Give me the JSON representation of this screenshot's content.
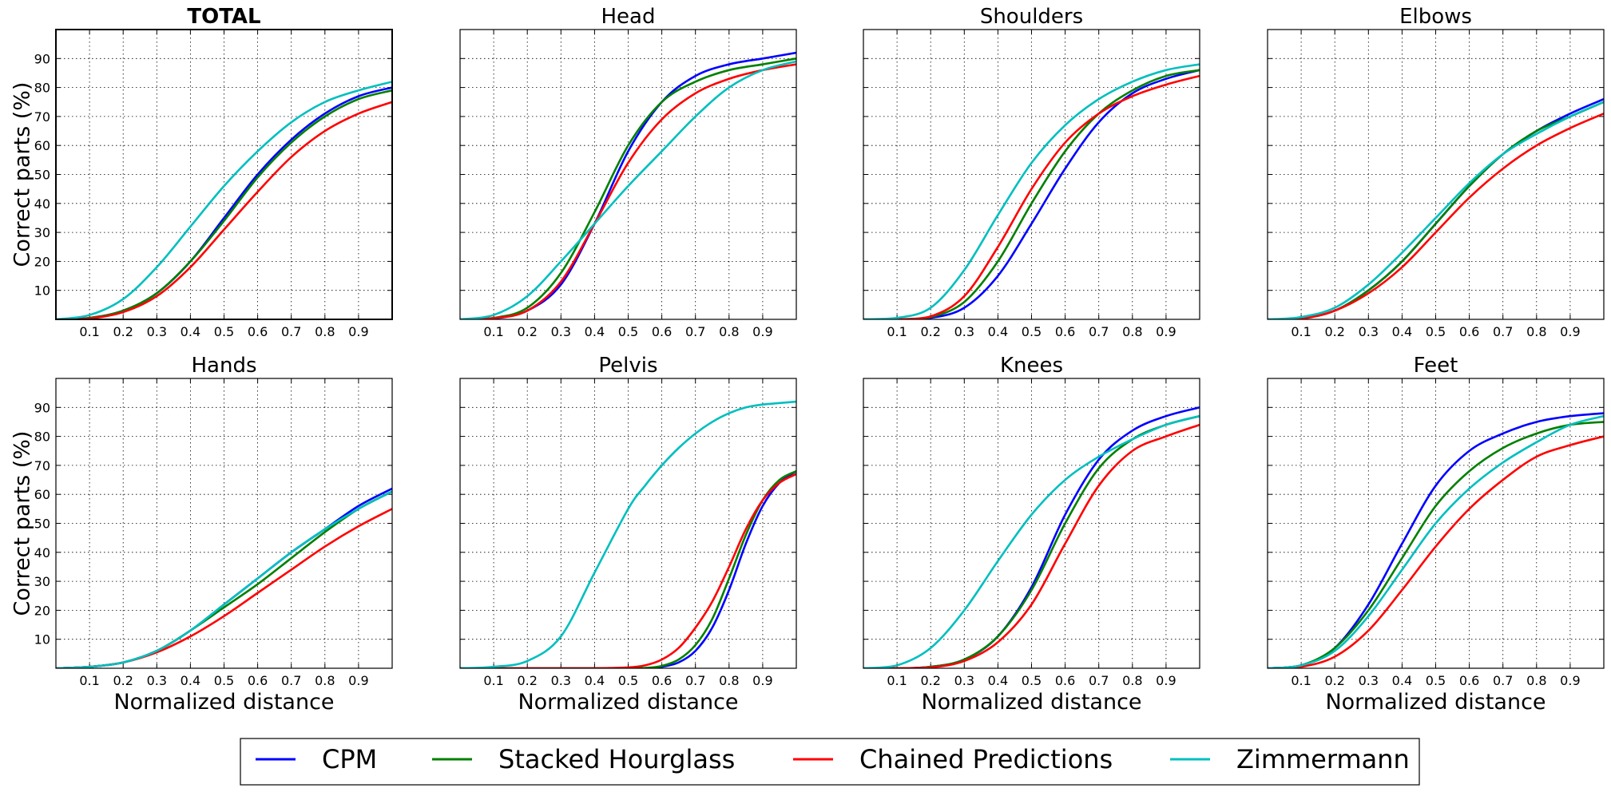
{
  "legend": {
    "placement": "bottom-center",
    "entries": [
      {
        "name": "CPM",
        "color": "#0000ff"
      },
      {
        "name": "Stacked Hourglass",
        "color": "#008000"
      },
      {
        "name": "Chained Predictions",
        "color": "#ff0000"
      },
      {
        "name": "Zimmermann",
        "color": "#00bfbf"
      }
    ]
  },
  "chart_data": [
    {
      "type": "line",
      "title": "TOTAL",
      "title_bold": true,
      "xlabel": "",
      "ylabel": "Correct parts (%)",
      "xlim": [
        0,
        1
      ],
      "ylim": [
        0,
        100
      ],
      "xticks": [
        0.1,
        0.2,
        0.3,
        0.4,
        0.5,
        0.6,
        0.7,
        0.8,
        0.9
      ],
      "xtick_labels": [
        "0.1",
        "0.2",
        "0.3",
        "0.4",
        "0.5",
        "0.6",
        "0.7",
        "0.8",
        "0.9"
      ],
      "yticks": [
        10,
        20,
        30,
        40,
        50,
        60,
        70,
        80,
        90
      ],
      "ytick_labels": [
        "10",
        "20",
        "30",
        "40",
        "50",
        "60",
        "70",
        "80",
        "90"
      ],
      "grid": true,
      "x": [
        0,
        0.1,
        0.2,
        0.3,
        0.4,
        0.5,
        0.6,
        0.7,
        0.8,
        0.9,
        1.0
      ],
      "series": [
        {
          "name": "CPM",
          "values": [
            0,
            0.5,
            3,
            9,
            20,
            35,
            50,
            62,
            71,
            77,
            80
          ]
        },
        {
          "name": "Stacked Hourglass",
          "values": [
            0,
            0.5,
            3,
            9,
            20,
            34,
            49,
            61,
            70,
            76,
            79
          ]
        },
        {
          "name": "Chained Predictions",
          "values": [
            0,
            0.3,
            2.5,
            8,
            18,
            31,
            44,
            56,
            65,
            71,
            75
          ]
        },
        {
          "name": "Zimmermann",
          "values": [
            0,
            1.5,
            7,
            18,
            32,
            46,
            58,
            68,
            75,
            79,
            82
          ]
        }
      ]
    },
    {
      "type": "line",
      "title": "Head",
      "xlabel": "",
      "ylabel": "",
      "xlim": [
        0,
        1
      ],
      "ylim": [
        0,
        100
      ],
      "xticks": [
        0.1,
        0.2,
        0.3,
        0.4,
        0.5,
        0.6,
        0.7,
        0.8,
        0.9
      ],
      "xtick_labels": [
        "0.1",
        "0.2",
        "0.3",
        "0.4",
        "0.5",
        "0.6",
        "0.7",
        "0.8",
        "0.9"
      ],
      "yticks": [
        10,
        20,
        30,
        40,
        50,
        60,
        70,
        80,
        90
      ],
      "ytick_labels": [],
      "grid": true,
      "x": [
        0,
        0.1,
        0.2,
        0.3,
        0.4,
        0.5,
        0.6,
        0.7,
        0.8,
        0.9,
        1.0
      ],
      "series": [
        {
          "name": "CPM",
          "values": [
            0,
            0.3,
            3,
            12,
            33,
            58,
            75,
            84,
            88,
            90,
            92
          ]
        },
        {
          "name": "Stacked Hourglass",
          "values": [
            0,
            0.5,
            4,
            16,
            37,
            60,
            75,
            82,
            86,
            88,
            90
          ]
        },
        {
          "name": "Chained Predictions",
          "values": [
            0,
            0.4,
            3,
            13,
            33,
            54,
            69,
            78,
            83,
            86,
            88
          ]
        },
        {
          "name": "Zimmermann",
          "values": [
            0,
            1.5,
            8,
            20,
            33,
            46,
            58,
            70,
            80,
            86,
            89
          ]
        }
      ]
    },
    {
      "type": "line",
      "title": "Shoulders",
      "xlabel": "",
      "ylabel": "",
      "xlim": [
        0,
        1
      ],
      "ylim": [
        0,
        100
      ],
      "xticks": [
        0.1,
        0.2,
        0.3,
        0.4,
        0.5,
        0.6,
        0.7,
        0.8,
        0.9
      ],
      "xtick_labels": [
        "0.1",
        "0.2",
        "0.3",
        "0.4",
        "0.5",
        "0.6",
        "0.7",
        "0.8",
        "0.9"
      ],
      "yticks": [
        10,
        20,
        30,
        40,
        50,
        60,
        70,
        80,
        90
      ],
      "ytick_labels": [],
      "grid": true,
      "x": [
        0,
        0.1,
        0.2,
        0.3,
        0.4,
        0.5,
        0.6,
        0.7,
        0.8,
        0.9,
        1.0
      ],
      "series": [
        {
          "name": "CPM",
          "values": [
            0,
            0,
            0.5,
            4,
            15,
            33,
            52,
            68,
            78,
            83,
            86
          ]
        },
        {
          "name": "Stacked Hourglass",
          "values": [
            0,
            0,
            0.8,
            6,
            20,
            40,
            58,
            71,
            79,
            84,
            86
          ]
        },
        {
          "name": "Chained Predictions",
          "values": [
            0,
            0,
            1,
            8,
            25,
            45,
            61,
            71,
            77,
            81,
            84
          ]
        },
        {
          "name": "Zimmermann",
          "values": [
            0,
            0.5,
            4,
            17,
            36,
            54,
            67,
            76,
            82,
            86,
            88
          ]
        }
      ]
    },
    {
      "type": "line",
      "title": "Elbows",
      "xlabel": "",
      "ylabel": "",
      "xlim": [
        0,
        1
      ],
      "ylim": [
        0,
        100
      ],
      "xticks": [
        0.1,
        0.2,
        0.3,
        0.4,
        0.5,
        0.6,
        0.7,
        0.8,
        0.9
      ],
      "xtick_labels": [
        "0.1",
        "0.2",
        "0.3",
        "0.4",
        "0.5",
        "0.6",
        "0.7",
        "0.8",
        "0.9"
      ],
      "yticks": [
        10,
        20,
        30,
        40,
        50,
        60,
        70,
        80,
        90
      ],
      "ytick_labels": [],
      "grid": true,
      "x": [
        0,
        0.1,
        0.2,
        0.3,
        0.4,
        0.5,
        0.6,
        0.7,
        0.8,
        0.9,
        1.0
      ],
      "series": [
        {
          "name": "CPM",
          "values": [
            0,
            0.3,
            3,
            10,
            20,
            33,
            46,
            57,
            65,
            71,
            76
          ]
        },
        {
          "name": "Stacked Hourglass",
          "values": [
            0,
            0.3,
            3,
            10,
            20,
            33,
            46,
            57,
            65,
            70,
            75
          ]
        },
        {
          "name": "Chained Predictions",
          "values": [
            0,
            0.2,
            3,
            9,
            18,
            30,
            42,
            52,
            60,
            66,
            71
          ]
        },
        {
          "name": "Zimmermann",
          "values": [
            0,
            0.8,
            4,
            12,
            23,
            35,
            47,
            57,
            64,
            70,
            75
          ]
        }
      ]
    },
    {
      "type": "line",
      "title": "Hands",
      "xlabel": "Normalized distance",
      "ylabel": "Correct parts (%)",
      "xlim": [
        0,
        1
      ],
      "ylim": [
        0,
        100
      ],
      "xticks": [
        0.1,
        0.2,
        0.3,
        0.4,
        0.5,
        0.6,
        0.7,
        0.8,
        0.9
      ],
      "xtick_labels": [
        "0.1",
        "0.2",
        "0.3",
        "0.4",
        "0.5",
        "0.6",
        "0.7",
        "0.8",
        "0.9"
      ],
      "yticks": [
        10,
        20,
        30,
        40,
        50,
        60,
        70,
        80,
        90
      ],
      "ytick_labels": [
        "10",
        "20",
        "30",
        "40",
        "50",
        "60",
        "70",
        "80",
        "90"
      ],
      "grid": true,
      "x": [
        0,
        0.1,
        0.2,
        0.3,
        0.4,
        0.5,
        0.6,
        0.7,
        0.8,
        0.9,
        1.0
      ],
      "series": [
        {
          "name": "CPM",
          "values": [
            0,
            0.5,
            2,
            6,
            13,
            22,
            31,
            40,
            48,
            56,
            62
          ]
        },
        {
          "name": "Stacked Hourglass",
          "values": [
            0,
            0.5,
            2,
            6,
            13,
            21,
            29,
            38,
            47,
            55,
            61
          ]
        },
        {
          "name": "Chained Predictions",
          "values": [
            0,
            0.5,
            2,
            5.5,
            11,
            18,
            26,
            34,
            42,
            49,
            55
          ]
        },
        {
          "name": "Zimmermann",
          "values": [
            0,
            0.5,
            2,
            6,
            13,
            22,
            31,
            40,
            48,
            55,
            61
          ]
        }
      ]
    },
    {
      "type": "line",
      "title": "Pelvis",
      "xlabel": "Normalized distance",
      "ylabel": "",
      "xlim": [
        0,
        1
      ],
      "ylim": [
        0,
        100
      ],
      "xticks": [
        0.1,
        0.2,
        0.3,
        0.4,
        0.5,
        0.6,
        0.7,
        0.8,
        0.9
      ],
      "xtick_labels": [
        "0.1",
        "0.2",
        "0.3",
        "0.4",
        "0.5",
        "0.6",
        "0.7",
        "0.8",
        "0.9"
      ],
      "yticks": [
        10,
        20,
        30,
        40,
        50,
        60,
        70,
        80,
        90
      ],
      "ytick_labels": [],
      "grid": true,
      "x": [
        0,
        0.1,
        0.2,
        0.3,
        0.4,
        0.5,
        0.55,
        0.6,
        0.65,
        0.7,
        0.75,
        0.8,
        0.85,
        0.9,
        0.95,
        1.0
      ],
      "series": [
        {
          "name": "CPM",
          "values": [
            0,
            0,
            0,
            0,
            0,
            0,
            0,
            0.5,
            2,
            6,
            14,
            27,
            43,
            56,
            64,
            68
          ]
        },
        {
          "name": "Stacked Hourglass",
          "values": [
            0,
            0,
            0,
            0,
            0,
            0,
            0.1,
            0.8,
            3,
            8,
            17,
            31,
            46,
            58,
            65,
            68
          ]
        },
        {
          "name": "Chained Predictions",
          "values": [
            0,
            0,
            0,
            0,
            0,
            0.3,
            1,
            3,
            7,
            14,
            23,
            35,
            48,
            58,
            64,
            67
          ]
        },
        {
          "name": "Zimmermann",
          "values": [
            0,
            0.5,
            2.5,
            11,
            33,
            55,
            63,
            70,
            76,
            81,
            85,
            88,
            90,
            91,
            91.5,
            92
          ]
        }
      ]
    },
    {
      "type": "line",
      "title": "Knees",
      "xlabel": "Normalized distance",
      "ylabel": "",
      "xlim": [
        0,
        1
      ],
      "ylim": [
        0,
        100
      ],
      "xticks": [
        0.1,
        0.2,
        0.3,
        0.4,
        0.5,
        0.6,
        0.7,
        0.8,
        0.9
      ],
      "xtick_labels": [
        "0.1",
        "0.2",
        "0.3",
        "0.4",
        "0.5",
        "0.6",
        "0.7",
        "0.8",
        "0.9"
      ],
      "yticks": [
        10,
        20,
        30,
        40,
        50,
        60,
        70,
        80,
        90
      ],
      "ytick_labels": [],
      "grid": true,
      "x": [
        0,
        0.1,
        0.2,
        0.3,
        0.4,
        0.5,
        0.6,
        0.7,
        0.8,
        0.9,
        1.0
      ],
      "series": [
        {
          "name": "CPM",
          "values": [
            0,
            0,
            0.5,
            3,
            11,
            28,
            53,
            72,
            82,
            87,
            90
          ]
        },
        {
          "name": "Stacked Hourglass",
          "values": [
            0,
            0,
            0.5,
            3,
            11,
            27,
            50,
            69,
            79,
            84,
            87
          ]
        },
        {
          "name": "Chained Predictions",
          "values": [
            0,
            0,
            0.3,
            2.5,
            9,
            22,
            43,
            63,
            75,
            80,
            84
          ]
        },
        {
          "name": "Zimmermann",
          "values": [
            0,
            1,
            7,
            20,
            37,
            53,
            65,
            73,
            79,
            84,
            87
          ]
        }
      ]
    },
    {
      "type": "line",
      "title": "Feet",
      "xlabel": "Normalized distance",
      "ylabel": "",
      "xlim": [
        0,
        1
      ],
      "ylim": [
        0,
        100
      ],
      "xticks": [
        0.1,
        0.2,
        0.3,
        0.4,
        0.5,
        0.6,
        0.7,
        0.8,
        0.9
      ],
      "xtick_labels": [
        "0.1",
        "0.2",
        "0.3",
        "0.4",
        "0.5",
        "0.6",
        "0.7",
        "0.8",
        "0.9"
      ],
      "yticks": [
        10,
        20,
        30,
        40,
        50,
        60,
        70,
        80,
        90
      ],
      "ytick_labels": [],
      "grid": true,
      "x": [
        0,
        0.1,
        0.2,
        0.3,
        0.4,
        0.5,
        0.6,
        0.7,
        0.8,
        0.9,
        1.0
      ],
      "series": [
        {
          "name": "CPM",
          "values": [
            0,
            1,
            7,
            22,
            43,
            63,
            75,
            81,
            85,
            87,
            88
          ]
        },
        {
          "name": "Stacked Hourglass",
          "values": [
            0,
            1,
            7,
            20,
            38,
            56,
            68,
            76,
            81,
            84,
            85
          ]
        },
        {
          "name": "Chained Predictions",
          "values": [
            0,
            0.5,
            4,
            13,
            27,
            42,
            55,
            65,
            73,
            77,
            80
          ]
        },
        {
          "name": "Zimmermann",
          "values": [
            0,
            1,
            6,
            18,
            34,
            50,
            62,
            71,
            78,
            84,
            87
          ]
        }
      ]
    }
  ]
}
